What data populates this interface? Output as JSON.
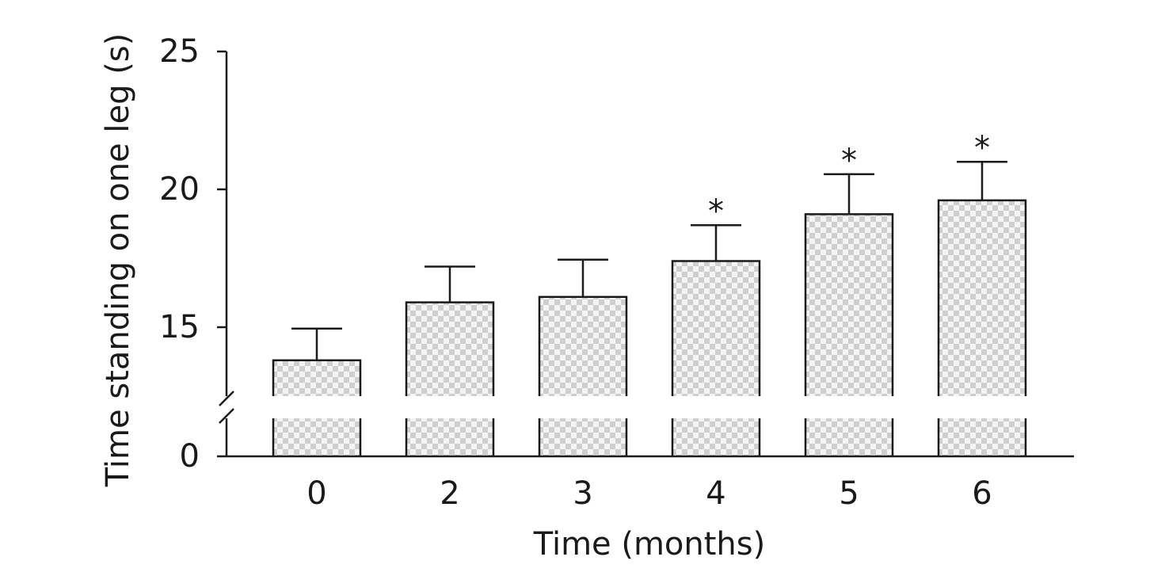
{
  "chart_data": {
    "type": "bar",
    "categories": [
      "0",
      "2",
      "3",
      "4",
      "5",
      "6"
    ],
    "values": [
      13.8,
      15.9,
      16.1,
      17.4,
      19.1,
      19.6
    ],
    "error_plus": [
      1.15,
      1.3,
      1.35,
      1.3,
      1.45,
      1.4
    ],
    "significance": [
      "",
      "",
      "",
      "*",
      "*",
      "*"
    ],
    "xlabel": "Time (months)",
    "ylabel": "Time standing on one leg (s)",
    "yticks": [
      "25",
      "20",
      "15",
      "0"
    ],
    "ylim": [
      0,
      25
    ],
    "axis_break": true,
    "grid": false,
    "bar_fill": "checkered",
    "colors": {
      "axis": "#1a1a1a",
      "bar_fill": "#d6d6d6",
      "bar_stroke": "#1a1a1a"
    }
  }
}
